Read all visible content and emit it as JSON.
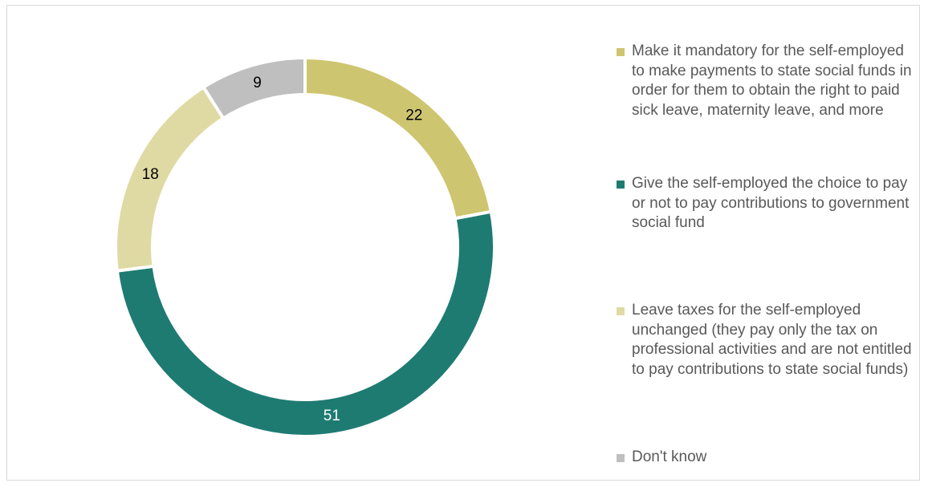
{
  "chart_data": {
    "type": "pie",
    "donut": true,
    "title": "",
    "categories": [
      "Make it mandatory for the self-employed to make payments to state social funds in order for them to obtain the right to paid sick leave, maternity leave, and more",
      "Give the self-employed the choice to pay or not to pay contributions to government social fund",
      "Leave taxes for the self-employed unchanged (they pay only the tax on professional activities and are not entitled to pay contributions to state social funds)",
      "Don't know"
    ],
    "values": [
      22,
      51,
      18,
      9
    ],
    "labels": [
      "22",
      "51",
      "18",
      "9"
    ],
    "colors": [
      "#CEC570",
      "#1E7B72",
      "#DFDAA3",
      "#BFBFBF"
    ],
    "label_colors": [
      "#000000",
      "#FFFFFF",
      "#000000",
      "#000000"
    ],
    "legend_position": "right"
  },
  "legend": {
    "items": [
      {
        "label": "Make it mandatory for the self-employed to make payments to state social funds in order for them to obtain the right to paid sick leave, maternity leave, and more",
        "color": "#CEC570"
      },
      {
        "label": "Give the self-employed the choice to pay or not to pay contributions to government social fund",
        "color": "#1E7B72"
      },
      {
        "label": "Leave taxes for the self-employed unchanged (they pay only the tax on professional activities and are not entitled to pay contributions to state social funds)",
        "color": "#DFDAA3"
      },
      {
        "label": "Don't know",
        "color": "#BFBFBF"
      }
    ]
  }
}
